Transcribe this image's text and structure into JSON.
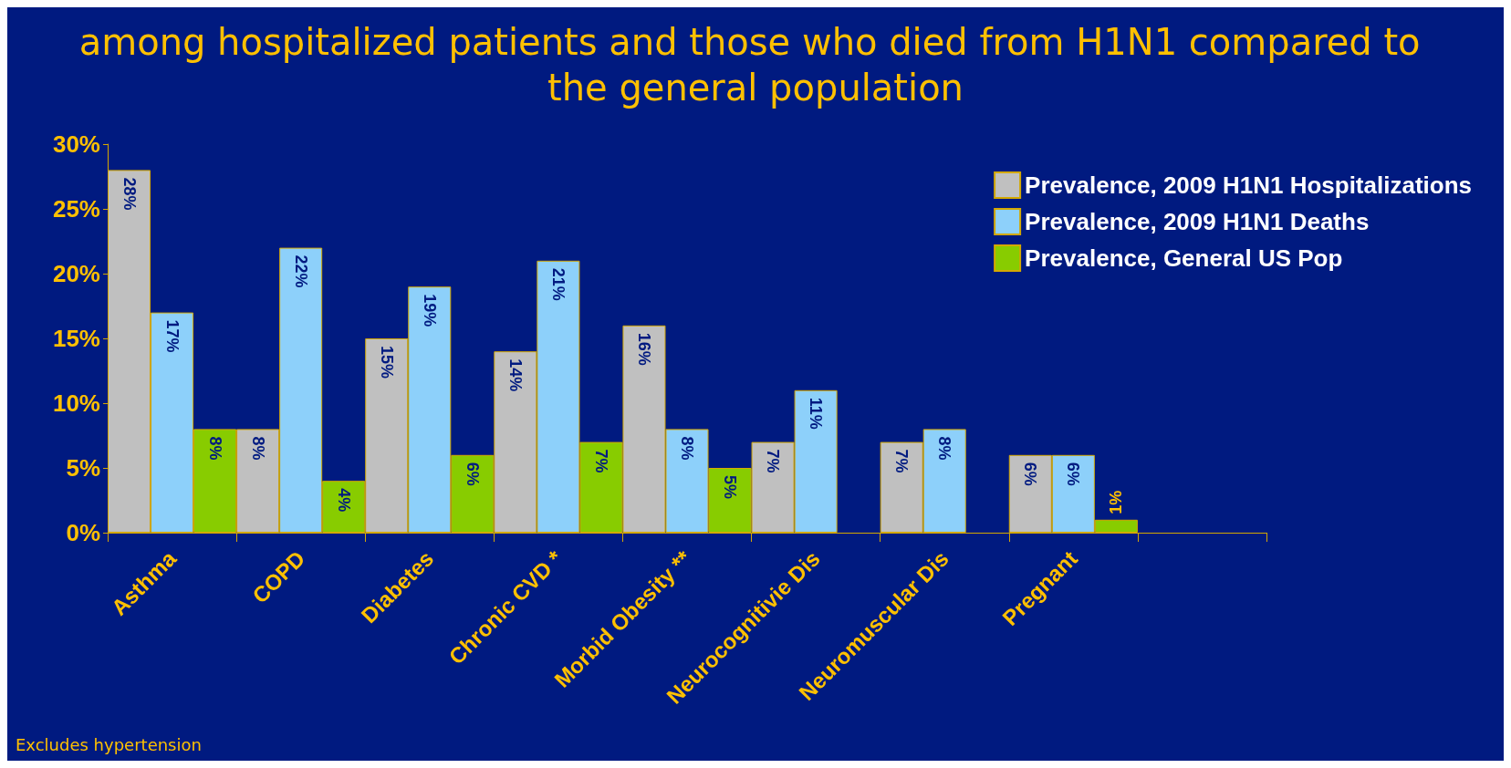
{
  "chart_data": {
    "type": "bar",
    "title": "among hospitalized patients and those who died from H1N1 compared to the general population",
    "categories": [
      "Asthma",
      "COPD",
      "Diabetes",
      "Chronic CVD *",
      "Morbid Obesity **",
      "Neurocognitivie Dis",
      "Neuromuscular Dis",
      "Pregnant",
      null
    ],
    "series": [
      {
        "name": "Prevalence, 2009 H1N1 Hospitalizations",
        "color": "#c0c0c0",
        "values": [
          28,
          8,
          15,
          14,
          16,
          7,
          7,
          6,
          null
        ],
        "value_labels": [
          "28%",
          "8%",
          "15%",
          "14%",
          "16%",
          "7%",
          "7%",
          "6%",
          null
        ]
      },
      {
        "name": "Prevalence, 2009 H1N1 Deaths",
        "color": "#8dd0fa",
        "values": [
          17,
          22,
          19,
          21,
          8,
          11,
          8,
          6,
          null
        ],
        "value_labels": [
          "17%",
          "22%",
          "19%",
          "21%",
          "8%",
          "11%",
          "8%",
          "6%",
          null
        ]
      },
      {
        "name": "Prevalence, General US Pop",
        "color": "#88cc00",
        "values": [
          8,
          4,
          6,
          7,
          5,
          null,
          null,
          1,
          null
        ],
        "value_labels": [
          "8%",
          "4%",
          "6%",
          "7%",
          "5%",
          null,
          null,
          "1%",
          null
        ]
      }
    ],
    "ylim": [
      0,
      30
    ],
    "yticks": [
      {
        "value": 0,
        "label": "0%"
      },
      {
        "value": 5,
        "label": "5%"
      },
      {
        "value": 10,
        "label": "10%"
      },
      {
        "value": 15,
        "label": "15%"
      },
      {
        "value": 20,
        "label": "20%"
      },
      {
        "value": 25,
        "label": "25%"
      },
      {
        "value": 30,
        "label": "30%"
      }
    ],
    "grid": false,
    "legend": "top right",
    "annotations": [
      "Excludes hypertension"
    ]
  }
}
